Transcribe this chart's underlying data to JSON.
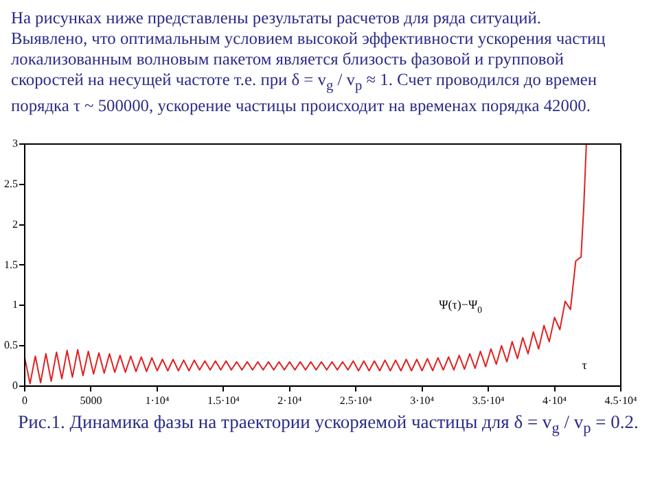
{
  "chart_data": {
    "type": "line",
    "title": "На рисунках ниже представлены результаты расчетов для ряда ситуаций. Выявлено, что оптимальным условием высокой эффективности ускорения частиц локализованным волновым пакетом является близость фазовой и групповой скоростей на несущей частоте т.е. при δ = v$_{g}$ / v$_{p}$ ≈ 1. Счет проводился до времен порядка τ ~ 500000, ускорение частицы происходит на временах порядка 42000.",
    "xlabel": "τ",
    "ylabel": "Ψ(τ)−Ψ$_{0}$",
    "annotations": [
      "Рис.1. Динамика фазы на траектории ускоряемой частицы для δ = v$_{g}$ / v$_{p}$ = 0.2."
    ],
    "x": [
      0,
      400,
      800,
      1200,
      1600,
      2000,
      2400,
      2800,
      3200,
      3600,
      4000,
      4400,
      4800,
      5200,
      5600,
      6000,
      6400,
      6800,
      7200,
      7600,
      8000,
      8400,
      8800,
      9200,
      9600,
      10000,
      10400,
      10800,
      11200,
      11600,
      12000,
      12400,
      12800,
      13200,
      13600,
      14000,
      14400,
      14800,
      15200,
      15600,
      16000,
      16400,
      16800,
      17200,
      17600,
      18000,
      18400,
      18800,
      19200,
      19600,
      20000,
      20400,
      20800,
      21200,
      21600,
      22000,
      22400,
      22800,
      23200,
      23600,
      24000,
      24400,
      24800,
      25200,
      25600,
      26000,
      26400,
      26800,
      27200,
      27600,
      28000,
      28400,
      28800,
      29200,
      29600,
      30000,
      30400,
      30800,
      31200,
      31600,
      32000,
      32400,
      32800,
      33200,
      33600,
      34000,
      34400,
      34800,
      35200,
      35600,
      36000,
      36400,
      36800,
      37200,
      37600,
      38000,
      38400,
      38800,
      39200,
      39600,
      40000,
      40400,
      40800,
      41200,
      41600,
      42000,
      42200,
      42400
    ],
    "series": [
      {
        "color": "#e02020",
        "values": [
          0.35,
          0.03,
          0.37,
          0.04,
          0.4,
          0.06,
          0.42,
          0.09,
          0.44,
          0.11,
          0.45,
          0.13,
          0.43,
          0.15,
          0.41,
          0.16,
          0.4,
          0.17,
          0.38,
          0.17,
          0.37,
          0.18,
          0.36,
          0.18,
          0.35,
          0.19,
          0.33,
          0.19,
          0.33,
          0.19,
          0.32,
          0.19,
          0.32,
          0.2,
          0.31,
          0.2,
          0.31,
          0.2,
          0.31,
          0.2,
          0.3,
          0.2,
          0.3,
          0.2,
          0.3,
          0.2,
          0.3,
          0.2,
          0.3,
          0.2,
          0.3,
          0.2,
          0.3,
          0.2,
          0.3,
          0.2,
          0.3,
          0.2,
          0.3,
          0.2,
          0.3,
          0.2,
          0.31,
          0.19,
          0.31,
          0.19,
          0.31,
          0.19,
          0.32,
          0.19,
          0.32,
          0.19,
          0.33,
          0.19,
          0.33,
          0.19,
          0.34,
          0.19,
          0.35,
          0.2,
          0.36,
          0.2,
          0.38,
          0.21,
          0.4,
          0.22,
          0.43,
          0.24,
          0.46,
          0.27,
          0.5,
          0.3,
          0.55,
          0.34,
          0.6,
          0.4,
          0.67,
          0.46,
          0.75,
          0.55,
          0.85,
          0.7,
          1.05,
          0.95,
          1.55,
          1.6,
          2.2,
          3
        ]
      }
    ],
    "xlim": [
      0,
      45000
    ],
    "xticks": [
      0,
      5000,
      {
        "value": 10000,
        "label": "1·10⁴"
      },
      {
        "value": 15000,
        "label": "1.5·10⁴"
      },
      {
        "value": 20000,
        "label": "2·10⁴"
      },
      {
        "value": 25000,
        "label": "2.5·10⁴"
      },
      {
        "value": 30000,
        "label": "3·10⁴"
      },
      {
        "value": 35000,
        "label": "3.5·10⁴"
      },
      {
        "value": 40000,
        "label": "4·10⁴"
      },
      {
        "value": 45000,
        "label": "4.5·10⁴"
      }
    ],
    "ylim": [
      0,
      3
    ],
    "yticks": [
      0,
      0.5,
      1,
      1.5,
      2,
      2.5,
      3
    ],
    "grid": false,
    "legend": false,
    "marker": "none",
    "line_style": "solid"
  }
}
